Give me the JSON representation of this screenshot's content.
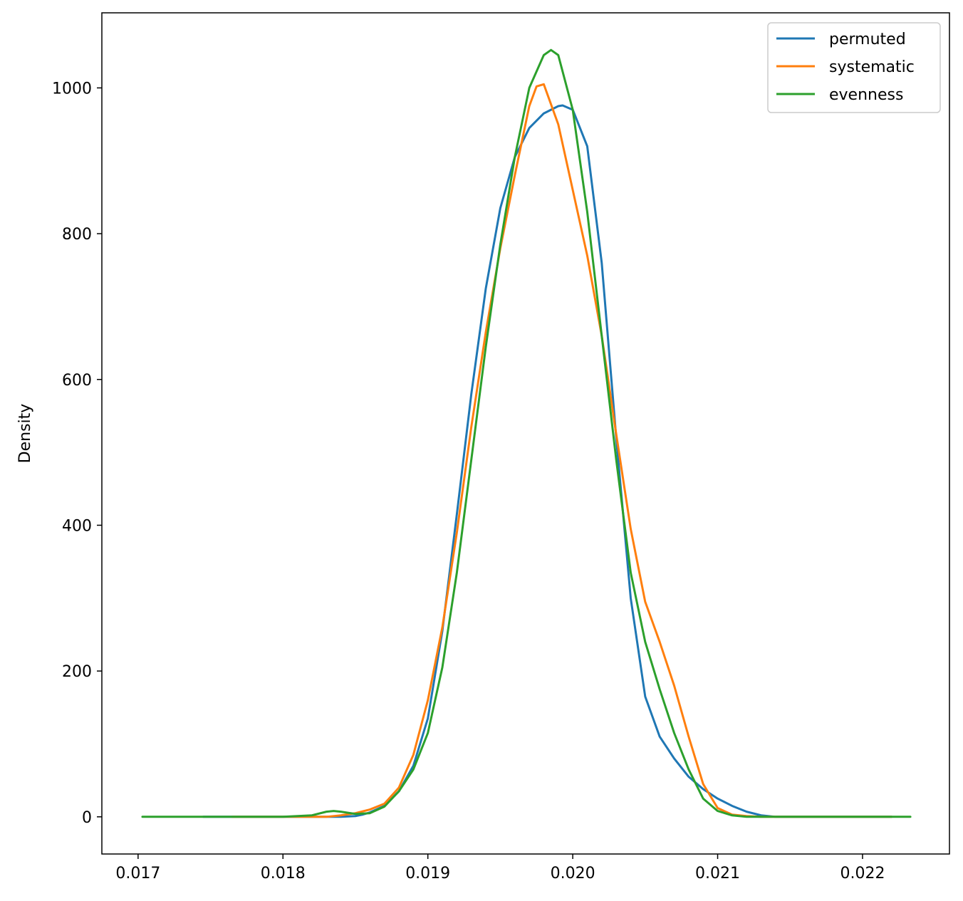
{
  "chart_data": {
    "type": "line",
    "title": "",
    "xlabel": "",
    "ylabel": "Density",
    "xlim": [
      0.01675,
      0.0226
    ],
    "ylim": [
      -51,
      1103
    ],
    "xticks": [
      {
        "value": 0.017,
        "label": "0.017"
      },
      {
        "value": 0.018,
        "label": "0.018"
      },
      {
        "value": 0.019,
        "label": "0.019"
      },
      {
        "value": 0.02,
        "label": "0.020"
      },
      {
        "value": 0.021,
        "label": "0.021"
      },
      {
        "value": 0.022,
        "label": "0.022"
      }
    ],
    "yticks": [
      {
        "value": 0,
        "label": "0"
      },
      {
        "value": 200,
        "label": "200"
      },
      {
        "value": 400,
        "label": "400"
      },
      {
        "value": 600,
        "label": "600"
      },
      {
        "value": 800,
        "label": "800"
      },
      {
        "value": 1000,
        "label": "1000"
      }
    ],
    "grid": false,
    "legend_position": "top-right",
    "series": [
      {
        "name": "permuted",
        "color": "#1f77b4",
        "x": [
          0.01745,
          0.018,
          0.0184,
          0.0185,
          0.01855,
          0.0186,
          0.0187,
          0.0188,
          0.0189,
          0.019,
          0.0191,
          0.0192,
          0.0193,
          0.0194,
          0.0195,
          0.0196,
          0.0197,
          0.0198,
          0.0199,
          0.01993,
          0.02,
          0.0201,
          0.0202,
          0.0203,
          0.0204,
          0.0205,
          0.0206,
          0.0207,
          0.0208,
          0.0209,
          0.021,
          0.0211,
          0.0212,
          0.0213,
          0.0214,
          0.0216,
          0.0222
        ],
        "y": [
          0,
          0,
          0,
          1,
          3,
          6,
          15,
          35,
          70,
          135,
          255,
          415,
          580,
          725,
          835,
          905,
          945,
          965,
          975,
          976,
          970,
          920,
          760,
          520,
          300,
          165,
          110,
          80,
          55,
          38,
          25,
          15,
          7,
          2,
          0,
          0,
          0
        ]
      },
      {
        "name": "systematic",
        "color": "#ff7f0e",
        "x": [
          0.01765,
          0.018,
          0.0183,
          0.0184,
          0.0185,
          0.0186,
          0.0187,
          0.0188,
          0.0189,
          0.019,
          0.0191,
          0.0192,
          0.0193,
          0.0194,
          0.0195,
          0.0196,
          0.0197,
          0.01975,
          0.0198,
          0.0199,
          0.02,
          0.0201,
          0.0202,
          0.0203,
          0.0204,
          0.0205,
          0.0206,
          0.0207,
          0.0208,
          0.0209,
          0.021,
          0.0211,
          0.0212,
          0.0213,
          0.0215,
          0.0222
        ],
        "y": [
          0,
          0,
          0,
          2,
          5,
          10,
          18,
          40,
          85,
          160,
          260,
          390,
          535,
          665,
          780,
          880,
          975,
          1002,
          1005,
          950,
          860,
          770,
          660,
          525,
          395,
          295,
          240,
          180,
          110,
          45,
          12,
          3,
          1,
          0,
          0,
          0
        ]
      },
      {
        "name": "evenness",
        "color": "#2ca02c",
        "x": [
          0.01703,
          0.018,
          0.0182,
          0.0183,
          0.01835,
          0.0184,
          0.0185,
          0.0186,
          0.0187,
          0.0188,
          0.0189,
          0.019,
          0.0191,
          0.0192,
          0.0193,
          0.0194,
          0.0195,
          0.0196,
          0.0197,
          0.0198,
          0.01985,
          0.0199,
          0.02,
          0.0201,
          0.0202,
          0.0203,
          0.0204,
          0.0205,
          0.0206,
          0.0207,
          0.0208,
          0.0209,
          0.021,
          0.0211,
          0.0212,
          0.0213,
          0.0214,
          0.0216,
          0.02233
        ],
        "y": [
          0,
          0,
          2,
          7,
          8,
          7,
          4,
          5,
          14,
          35,
          65,
          115,
          205,
          335,
          490,
          645,
          785,
          905,
          1000,
          1045,
          1052,
          1045,
          970,
          830,
          660,
          490,
          335,
          240,
          175,
          115,
          65,
          25,
          8,
          2,
          0,
          0,
          0,
          0,
          0
        ]
      }
    ]
  }
}
